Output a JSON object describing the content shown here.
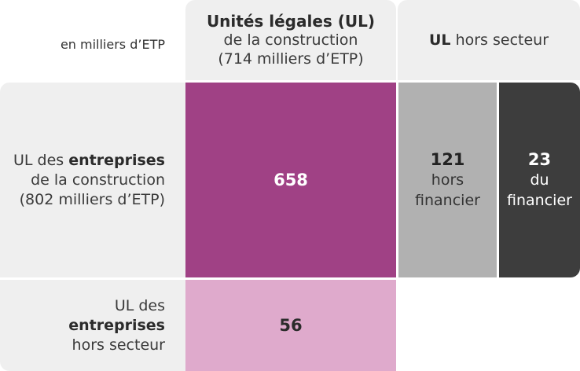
{
  "unit_label": "en milliers d’ETP",
  "columns": {
    "ul_construction": {
      "title": "Unités légales (UL)",
      "subtitle": "de la construction",
      "total": "(714 milliers d’ETP)"
    },
    "ul_hors_secteur": {
      "title_bold": "UL",
      "title_rest": " hors secteur"
    }
  },
  "rows": {
    "entreprises_construction": {
      "prefix": "UL des ",
      "bold": "entreprises",
      "line2": "de la construction",
      "total": "(802 milliers d’ETP)"
    },
    "entreprises_hors_secteur": {
      "line1": "UL des",
      "bold": "entreprises",
      "line3": "hors secteur"
    }
  },
  "values": {
    "construction_construction": "658",
    "hors_financier": {
      "value": "121",
      "line1": "hors",
      "line2": "financier"
    },
    "financier": {
      "value": "23",
      "line1": "du",
      "line2": "financier"
    },
    "hors_secteur_construction": "56"
  },
  "colors": {
    "main": "#a04185",
    "hors_financier": "#b1b1b1",
    "financier": "#3d3d3d",
    "hors_secteur": "#dfaacc",
    "label_bg": "#efefef"
  }
}
